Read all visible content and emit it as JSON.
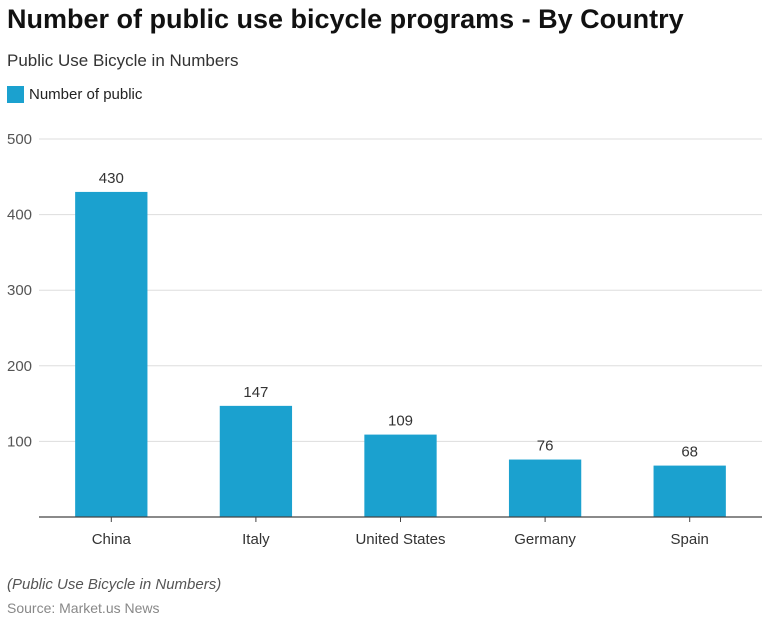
{
  "chart_data": {
    "type": "bar",
    "title": "Number of public use bicycle programs - By Country",
    "subtitle": "Public Use Bicycle in Numbers",
    "categories": [
      "China",
      "Italy",
      "United States",
      "Germany",
      "Spain"
    ],
    "series": [
      {
        "name": "Number of public",
        "values": [
          430,
          147,
          109,
          76,
          68
        ]
      }
    ],
    "yticks": [
      100,
      200,
      300,
      400,
      500
    ],
    "ylim": [
      0,
      500
    ],
    "grid": true,
    "legend": "top-left",
    "color": "#1ba1cf",
    "note": "(Public Use Bicycle in Numbers)",
    "source": "Source: Market.us News"
  }
}
